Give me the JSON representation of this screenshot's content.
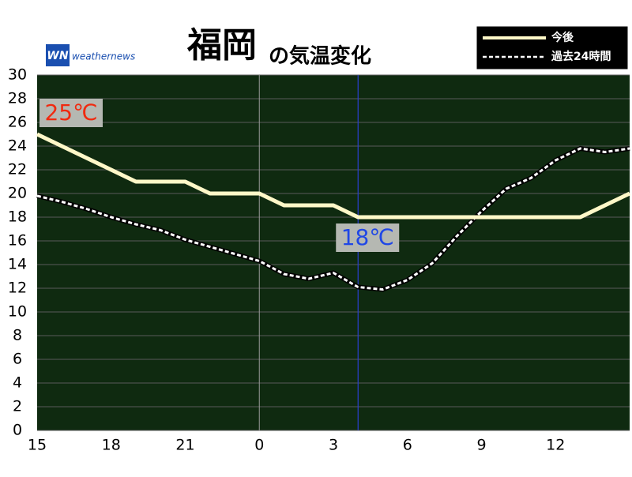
{
  "chart_data": {
    "type": "line",
    "title": "福岡",
    "title_suffix": "の気温変化",
    "brand": {
      "logo": "WN",
      "name": "weathernews"
    },
    "categories": [
      "15",
      null,
      null,
      "18",
      null,
      null,
      "21",
      null,
      null,
      "0",
      null,
      null,
      "3",
      null,
      null,
      "6",
      null,
      null,
      "9",
      null,
      null,
      "12",
      null,
      null,
      null
    ],
    "series": [
      {
        "name": "今後",
        "color": "#fff8c8",
        "dashed": false,
        "values": [
          25,
          24,
          23,
          22,
          21,
          21,
          21,
          20,
          20,
          20,
          19,
          19,
          19,
          18,
          18,
          18,
          18,
          18,
          18,
          18,
          18,
          18,
          18,
          19,
          20
        ],
        "value_labels": [
          "25℃",
          null,
          null,
          null,
          null,
          null,
          null,
          null,
          null,
          null,
          null,
          null,
          null,
          "18℃",
          null,
          null,
          null,
          null,
          null,
          null,
          null,
          null,
          null,
          null,
          null
        ]
      },
      {
        "name": "過去24時間",
        "color": "#ffffff",
        "dashed": true,
        "values": [
          19.8,
          19.3,
          18.7,
          18.0,
          17.4,
          16.9,
          16.1,
          15.5,
          14.9,
          14.3,
          13.2,
          12.8,
          13.3,
          12.1,
          11.9,
          12.7,
          14.1,
          16.4,
          18.5,
          20.4,
          21.3,
          22.8,
          23.8,
          23.5,
          23.8
        ]
      }
    ],
    "ylim": [
      0,
      30
    ],
    "yticks": [
      0,
      2,
      4,
      6,
      8,
      10,
      12,
      14,
      16,
      18,
      20,
      22,
      24,
      26,
      28,
      30
    ],
    "grid": true,
    "legend": "top-right"
  }
}
